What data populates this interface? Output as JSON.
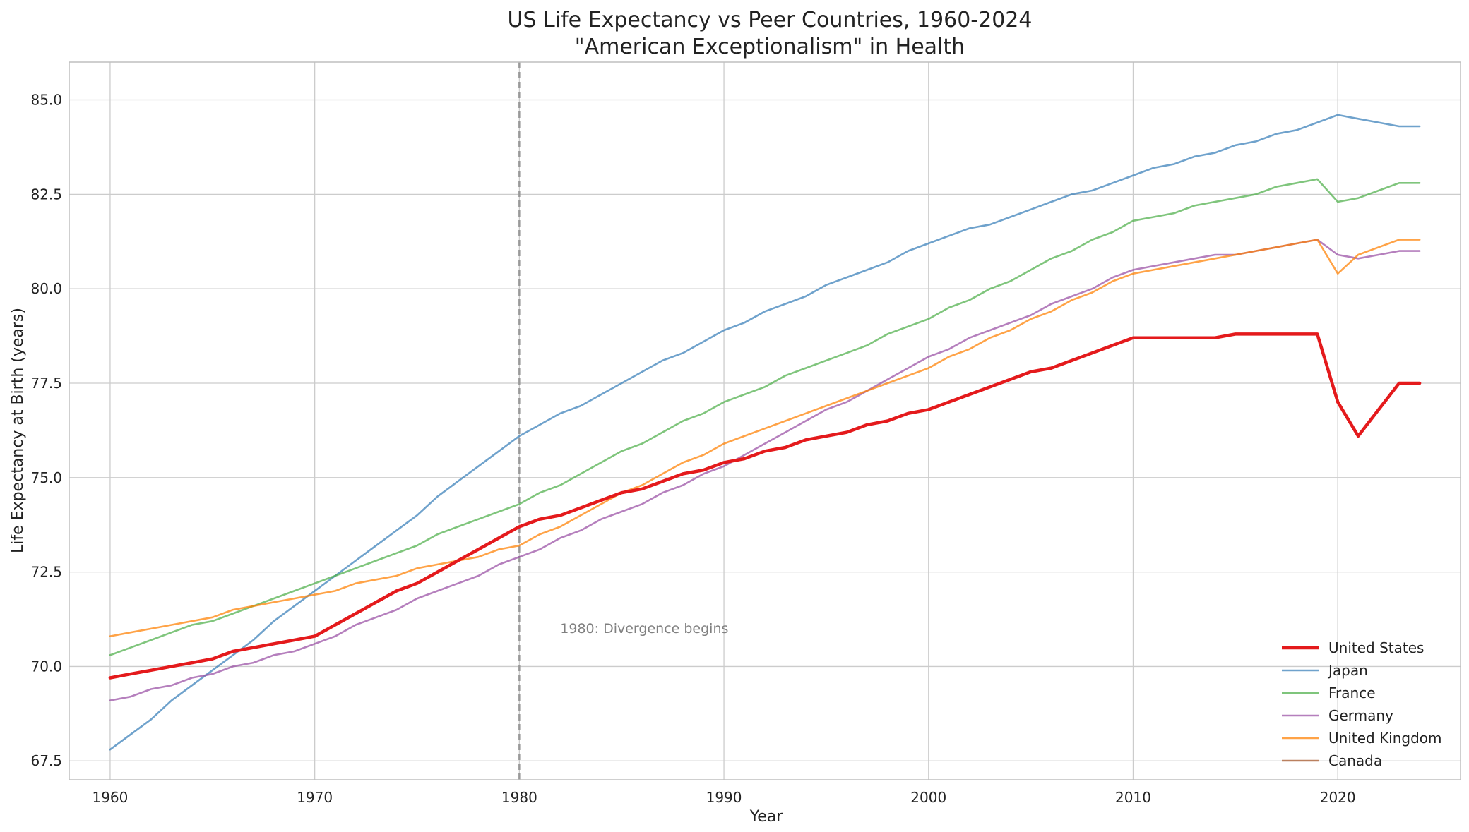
{
  "chart_data": {
    "type": "line",
    "title": "US Life Expectancy vs Peer Countries, 1960-2024",
    "subtitle": "\"American Exceptionalism\" in Health",
    "xlabel": "Year",
    "ylabel": "Life Expectancy at Birth (years)",
    "xlim": [
      1958,
      2026
    ],
    "ylim": [
      67,
      86
    ],
    "xticks": [
      1960,
      1970,
      1980,
      1990,
      2000,
      2010,
      2020
    ],
    "xtick_labels": [
      "1960",
      "1970",
      "1980",
      "1990",
      "2000",
      "2010",
      "2020"
    ],
    "yticks": [
      67.5,
      70.0,
      72.5,
      75.0,
      77.5,
      80.0,
      82.5,
      85.0
    ],
    "ytick_labels": [
      "67.5",
      "70.0",
      "72.5",
      "75.0",
      "77.5",
      "80.0",
      "82.5",
      "85.0"
    ],
    "grid": true,
    "legend_position": "lower-right",
    "annotation": {
      "text": "1980: Divergence begins",
      "x": 1982,
      "y": 71.0,
      "vline_x": 1980
    },
    "series": [
      {
        "name": "United States",
        "color": "#e41a1c",
        "emphasis": true,
        "x": [
          1960,
          1961,
          1962,
          1963,
          1964,
          1965,
          1966,
          1967,
          1968,
          1969,
          1970,
          1971,
          1972,
          1973,
          1974,
          1975,
          1976,
          1977,
          1978,
          1979,
          1980,
          1981,
          1982,
          1983,
          1984,
          1985,
          1986,
          1987,
          1988,
          1989,
          1990,
          1991,
          1992,
          1993,
          1994,
          1995,
          1996,
          1997,
          1998,
          1999,
          2000,
          2001,
          2002,
          2003,
          2004,
          2005,
          2006,
          2007,
          2008,
          2009,
          2010,
          2011,
          2012,
          2013,
          2014,
          2015,
          2016,
          2017,
          2018,
          2019,
          2020,
          2021,
          2022,
          2023,
          2024
        ],
        "y": [
          69.7,
          69.8,
          69.9,
          70.0,
          70.1,
          70.2,
          70.4,
          70.5,
          70.6,
          70.7,
          70.8,
          71.1,
          71.4,
          71.7,
          72.0,
          72.2,
          72.5,
          72.8,
          73.1,
          73.4,
          73.7,
          73.9,
          74.0,
          74.2,
          74.4,
          74.6,
          74.7,
          74.9,
          75.1,
          75.2,
          75.4,
          75.5,
          75.7,
          75.8,
          76.0,
          76.1,
          76.2,
          76.4,
          76.5,
          76.7,
          76.8,
          77.0,
          77.2,
          77.4,
          77.6,
          77.8,
          77.9,
          78.1,
          78.3,
          78.5,
          78.7,
          78.7,
          78.7,
          78.7,
          78.7,
          78.8,
          78.8,
          78.8,
          78.8,
          78.8,
          77.0,
          76.1,
          76.8,
          77.5,
          77.5
        ]
      },
      {
        "name": "Japan",
        "color": "#377eb8",
        "x": [
          1960,
          1961,
          1962,
          1963,
          1964,
          1965,
          1966,
          1967,
          1968,
          1969,
          1970,
          1971,
          1972,
          1973,
          1974,
          1975,
          1976,
          1977,
          1978,
          1979,
          1980,
          1981,
          1982,
          1983,
          1984,
          1985,
          1986,
          1987,
          1988,
          1989,
          1990,
          1991,
          1992,
          1993,
          1994,
          1995,
          1996,
          1997,
          1998,
          1999,
          2000,
          2001,
          2002,
          2003,
          2004,
          2005,
          2006,
          2007,
          2008,
          2009,
          2010,
          2011,
          2012,
          2013,
          2014,
          2015,
          2016,
          2017,
          2018,
          2019,
          2020,
          2021,
          2022,
          2023,
          2024
        ],
        "y": [
          67.8,
          68.2,
          68.6,
          69.1,
          69.5,
          69.9,
          70.3,
          70.7,
          71.2,
          71.6,
          72.0,
          72.4,
          72.8,
          73.2,
          73.6,
          74.0,
          74.5,
          74.9,
          75.3,
          75.7,
          76.1,
          76.4,
          76.7,
          76.9,
          77.2,
          77.5,
          77.8,
          78.1,
          78.3,
          78.6,
          78.9,
          79.1,
          79.4,
          79.6,
          79.8,
          80.1,
          80.3,
          80.5,
          80.7,
          81.0,
          81.2,
          81.4,
          81.6,
          81.7,
          81.9,
          82.1,
          82.3,
          82.5,
          82.6,
          82.8,
          83.0,
          83.2,
          83.3,
          83.5,
          83.6,
          83.8,
          83.9,
          84.1,
          84.2,
          84.4,
          84.6,
          84.5,
          84.4,
          84.3,
          84.3
        ]
      },
      {
        "name": "France",
        "color": "#4daf4a",
        "x": [
          1960,
          1961,
          1962,
          1963,
          1964,
          1965,
          1966,
          1967,
          1968,
          1969,
          1970,
          1971,
          1972,
          1973,
          1974,
          1975,
          1976,
          1977,
          1978,
          1979,
          1980,
          1981,
          1982,
          1983,
          1984,
          1985,
          1986,
          1987,
          1988,
          1989,
          1990,
          1991,
          1992,
          1993,
          1994,
          1995,
          1996,
          1997,
          1998,
          1999,
          2000,
          2001,
          2002,
          2003,
          2004,
          2005,
          2006,
          2007,
          2008,
          2009,
          2010,
          2011,
          2012,
          2013,
          2014,
          2015,
          2016,
          2017,
          2018,
          2019,
          2020,
          2021,
          2022,
          2023,
          2024
        ],
        "y": [
          70.3,
          70.5,
          70.7,
          70.9,
          71.1,
          71.2,
          71.4,
          71.6,
          71.8,
          72.0,
          72.2,
          72.4,
          72.6,
          72.8,
          73.0,
          73.2,
          73.5,
          73.7,
          73.9,
          74.1,
          74.3,
          74.6,
          74.8,
          75.1,
          75.4,
          75.7,
          75.9,
          76.2,
          76.5,
          76.7,
          77.0,
          77.2,
          77.4,
          77.7,
          77.9,
          78.1,
          78.3,
          78.5,
          78.8,
          79.0,
          79.2,
          79.5,
          79.7,
          80.0,
          80.2,
          80.5,
          80.8,
          81.0,
          81.3,
          81.5,
          81.8,
          81.9,
          82.0,
          82.2,
          82.3,
          82.4,
          82.5,
          82.7,
          82.8,
          82.9,
          82.3,
          82.4,
          82.6,
          82.8,
          82.8
        ]
      },
      {
        "name": "Germany",
        "color": "#984ea3",
        "x": [
          1960,
          1961,
          1962,
          1963,
          1964,
          1965,
          1966,
          1967,
          1968,
          1969,
          1970,
          1971,
          1972,
          1973,
          1974,
          1975,
          1976,
          1977,
          1978,
          1979,
          1980,
          1981,
          1982,
          1983,
          1984,
          1985,
          1986,
          1987,
          1988,
          1989,
          1990,
          1991,
          1992,
          1993,
          1994,
          1995,
          1996,
          1997,
          1998,
          1999,
          2000,
          2001,
          2002,
          2003,
          2004,
          2005,
          2006,
          2007,
          2008,
          2009,
          2010,
          2011,
          2012,
          2013,
          2014,
          2015,
          2016,
          2017,
          2018,
          2019,
          2020,
          2021,
          2022,
          2023,
          2024
        ],
        "y": [
          69.1,
          69.2,
          69.4,
          69.5,
          69.7,
          69.8,
          70.0,
          70.1,
          70.3,
          70.4,
          70.6,
          70.8,
          71.1,
          71.3,
          71.5,
          71.8,
          72.0,
          72.2,
          72.4,
          72.7,
          72.9,
          73.1,
          73.4,
          73.6,
          73.9,
          74.1,
          74.3,
          74.6,
          74.8,
          75.1,
          75.3,
          75.6,
          75.9,
          76.2,
          76.5,
          76.8,
          77.0,
          77.3,
          77.6,
          77.9,
          78.2,
          78.4,
          78.7,
          78.9,
          79.1,
          79.3,
          79.6,
          79.8,
          80.0,
          80.3,
          80.5,
          80.6,
          80.7,
          80.8,
          80.9,
          80.9,
          81.0,
          81.1,
          81.2,
          81.3,
          80.9,
          80.8,
          80.9,
          81.0,
          81.0
        ]
      },
      {
        "name": "United Kingdom",
        "color": "#ff7f00",
        "x": [
          1960,
          1961,
          1962,
          1963,
          1964,
          1965,
          1966,
          1967,
          1968,
          1969,
          1970,
          1971,
          1972,
          1973,
          1974,
          1975,
          1976,
          1977,
          1978,
          1979,
          1980,
          1981,
          1982,
          1983,
          1984,
          1985,
          1986,
          1987,
          1988,
          1989,
          1990,
          1991,
          1992,
          1993,
          1994,
          1995,
          1996,
          1997,
          1998,
          1999,
          2000,
          2001,
          2002,
          2003,
          2004,
          2005,
          2006,
          2007,
          2008,
          2009,
          2010,
          2011,
          2012,
          2013,
          2014,
          2015,
          2016,
          2017,
          2018,
          2019,
          2020,
          2021,
          2022,
          2023,
          2024
        ],
        "y": [
          70.8,
          70.9,
          71.0,
          71.1,
          71.2,
          71.3,
          71.5,
          71.6,
          71.7,
          71.8,
          71.9,
          72.0,
          72.2,
          72.3,
          72.4,
          72.6,
          72.7,
          72.8,
          72.9,
          73.1,
          73.2,
          73.5,
          73.7,
          74.0,
          74.3,
          74.6,
          74.8,
          75.1,
          75.4,
          75.6,
          75.9,
          76.1,
          76.3,
          76.5,
          76.7,
          76.9,
          77.1,
          77.3,
          77.5,
          77.7,
          77.9,
          78.2,
          78.4,
          78.7,
          78.9,
          79.2,
          79.4,
          79.7,
          79.9,
          80.2,
          80.4,
          80.5,
          80.6,
          80.7,
          80.8,
          80.9,
          81.0,
          81.1,
          81.2,
          81.3,
          80.4,
          80.9,
          81.1,
          81.3,
          81.3
        ]
      },
      {
        "name": "Canada",
        "color": "#a65628",
        "x": [],
        "y": []
      }
    ]
  }
}
